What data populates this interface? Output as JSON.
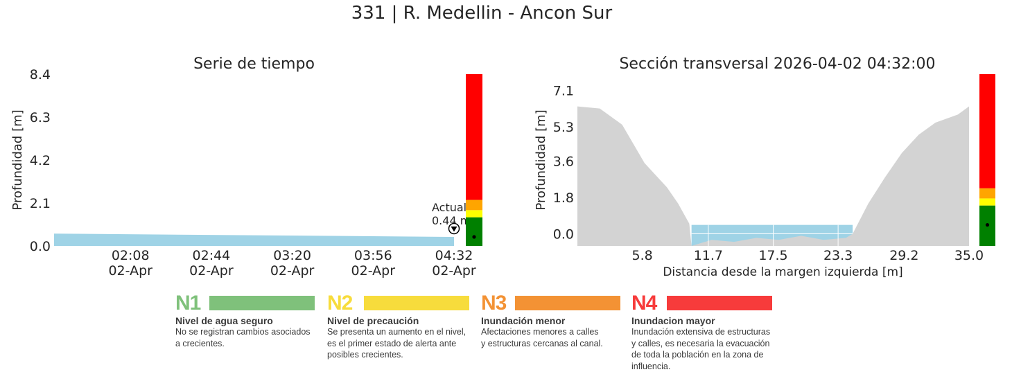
{
  "title": "331 | R. Medellin - Ancon Sur",
  "chart_data": [
    {
      "type": "area",
      "title": "Serie de tiempo",
      "xlabel": "",
      "ylabel": "Profundidad [m]",
      "ylim": [
        0,
        8.4
      ],
      "yticks": [
        "0.0",
        "2.1",
        "4.2",
        "6.3",
        "8.4"
      ],
      "xticks": [
        "02:08\n02-Apr",
        "02:44\n02-Apr",
        "03:20\n02-Apr",
        "03:56\n02-Apr",
        "04:32\n02-Apr"
      ],
      "x_minutes_range": [
        94,
        272
      ],
      "series": [
        {
          "x_time": [
            "01:34",
            "04:32"
          ],
          "values_top": [
            0.5,
            0.44
          ],
          "values_bottom": [
            0.0,
            0.0
          ],
          "color": "#9fd3e6"
        }
      ],
      "annotation": {
        "label": "Actual",
        "value_text": "0.44 m",
        "time": "04:32",
        "value": 0.44
      },
      "alert_bar": [
        {
          "from": 0.0,
          "to": 1.4,
          "color": "#008000"
        },
        {
          "from": 1.4,
          "to": 1.75,
          "color": "#ffff00"
        },
        {
          "from": 1.75,
          "to": 2.25,
          "color": "#ffa500"
        },
        {
          "from": 2.25,
          "to": 8.4,
          "color": "#ff0000"
        }
      ],
      "alert_marker": 0.44,
      "grid": false
    },
    {
      "type": "area",
      "title": "Sección transversal 2026-04-02 04:32:00",
      "xlabel": "Distancia desde la margen izquierda [m]",
      "ylabel": "Profundidad [m]",
      "xlim": [
        0.0,
        35.0
      ],
      "ylim": [
        -0.6,
        7.9
      ],
      "xticks": [
        "5.8",
        "11.7",
        "17.5",
        "23.3",
        "29.2",
        "35.0"
      ],
      "yticks": [
        "0.0",
        "1.8",
        "3.6",
        "5.3",
        "7.1"
      ],
      "water_level": 0.44,
      "water_x_range": [
        10.2,
        24.6
      ],
      "profile": {
        "x": [
          0,
          2,
          4,
          6,
          8,
          9,
          10,
          10.2,
          12,
          14,
          16,
          18,
          20,
          22,
          24,
          24.6,
          26,
          27.5,
          29,
          30.5,
          32,
          34,
          35
        ],
        "y": [
          6.3,
          6.2,
          5.4,
          3.5,
          2.3,
          1.5,
          0.5,
          -0.6,
          -0.3,
          -0.4,
          -0.2,
          -0.3,
          -0.1,
          -0.3,
          -0.2,
          0.0,
          1.5,
          2.8,
          4.0,
          4.9,
          5.5,
          5.9,
          6.3
        ]
      },
      "alert_bar": [
        {
          "from": -0.6,
          "to": 1.4,
          "color": "#008000"
        },
        {
          "from": 1.4,
          "to": 1.75,
          "color": "#ffff00"
        },
        {
          "from": 1.75,
          "to": 2.25,
          "color": "#ffa500"
        },
        {
          "from": 2.25,
          "to": 7.9,
          "color": "#ff0000"
        }
      ],
      "alert_marker": 0.44,
      "grid": false
    }
  ],
  "legend": [
    {
      "code": "N1",
      "name": "Nivel de agua seguro",
      "desc": [
        "No se registran cambios asociados",
        "a crecientes."
      ],
      "color": "#7fc17b"
    },
    {
      "code": "N2",
      "name": "Nivel de precaución",
      "desc": [
        "Se presenta un aumento en el nivel,",
        "es el primer estado de alerta ante",
        "posibles crecientes."
      ],
      "color": "#f7dc3c"
    },
    {
      "code": "N3",
      "name": "Inundación menor",
      "desc": [
        "Afectaciones menores a calles",
        "y estructuras cercanas al canal."
      ],
      "color": "#f39234"
    },
    {
      "code": "N4",
      "name": "Inundacion mayor",
      "desc": [
        "Inundación extensiva de estructuras",
        "y calles, es necesaria la evacuación",
        "de toda la población en la zona de",
        "influencia."
      ],
      "color": "#f73b3b"
    }
  ]
}
